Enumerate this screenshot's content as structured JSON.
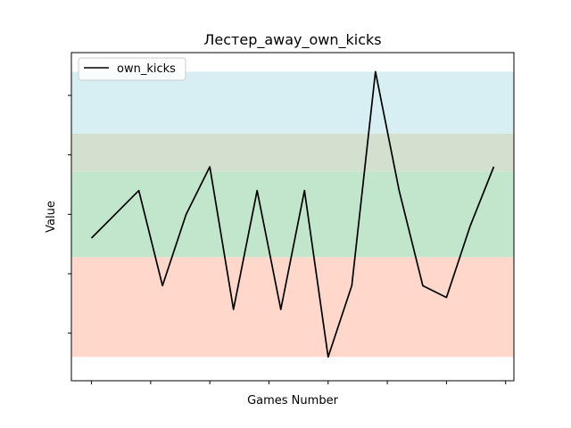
{
  "chart_data": {
    "type": "line",
    "title": "Лестер_away_own_kicks",
    "xlabel": "Games Number",
    "ylabel": "Value",
    "x": [
      0,
      1,
      2,
      3,
      4,
      5,
      6,
      7,
      8,
      9,
      10,
      11,
      12,
      13,
      14,
      15,
      16,
      17
    ],
    "series": [
      {
        "name": "own_kicks",
        "color": "#000000",
        "values": [
          10,
          11,
          12,
          8,
          11,
          13,
          7,
          12,
          7,
          12,
          5,
          8,
          17,
          12,
          8,
          7.5,
          10.5,
          13
        ]
      }
    ],
    "xlim": [
      -0.85,
      17.85
    ],
    "ylim": [
      4.0,
      17.8
    ],
    "bands": [
      {
        "from": 5,
        "to": 9.2,
        "color": "#ffd8cb"
      },
      {
        "from": 9.2,
        "to": 12.8,
        "color": "#c1e6cc"
      },
      {
        "from": 12.8,
        "to": 14.4,
        "color": "#d3e0cf"
      },
      {
        "from": 14.4,
        "to": 17.0,
        "color": "#d7eef3"
      }
    ],
    "x_ticks": [
      0,
      2.5,
      5,
      7.5,
      10,
      12.5,
      15,
      17.5
    ],
    "y_ticks": [
      6,
      8.5,
      11,
      13.5,
      16
    ],
    "show_tick_labels": false,
    "grid": false,
    "legend": {
      "position": "top-left"
    }
  }
}
